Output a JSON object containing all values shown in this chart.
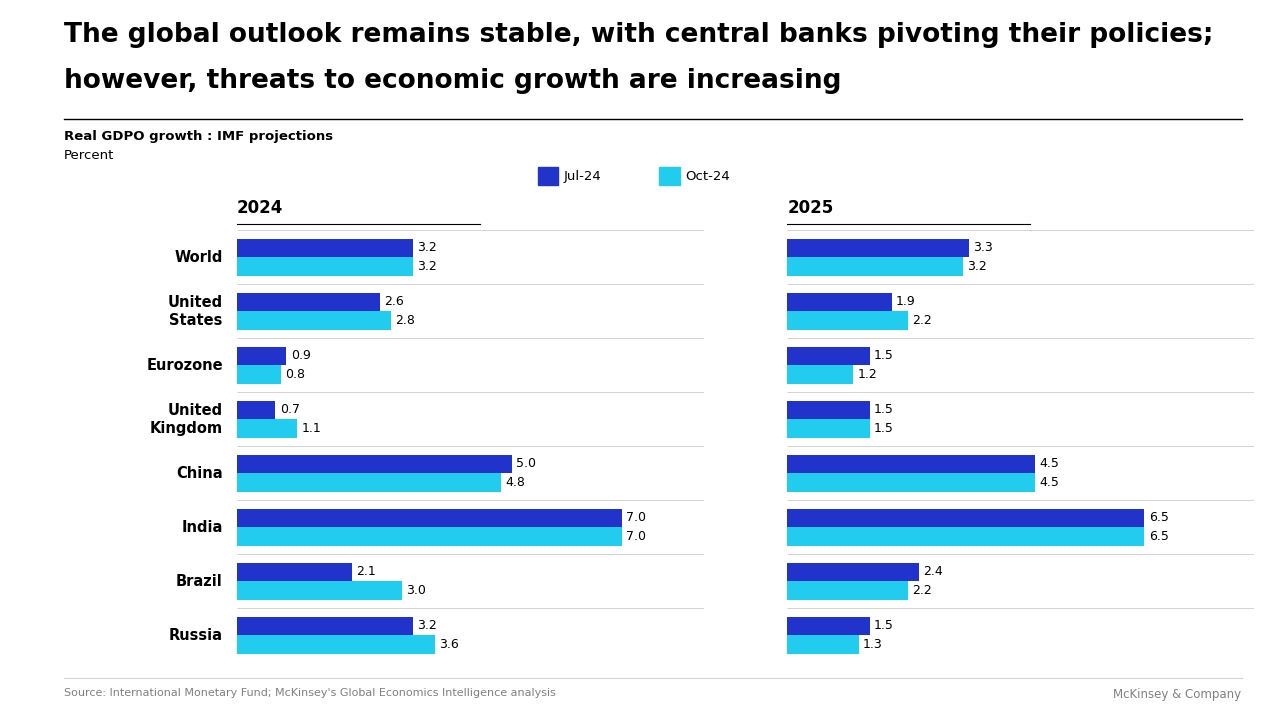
{
  "title_line1": "The global outlook remains stable, with central banks pivoting their policies;",
  "title_line2": "however, threats to economic growth are increasing",
  "subtitle1": "Real GDPO growth : IMF projections",
  "subtitle2": "Percent",
  "source": "Source: International Monetary Fund; McKinsey's Global Economics Intelligence analysis",
  "watermark": "McKinsey & Company",
  "legend": [
    "Jul-24",
    "Oct-24"
  ],
  "color_jul24": "#2233CC",
  "color_oct24": "#22CCEE",
  "categories": [
    "World",
    "United\nStates",
    "Eurozone",
    "United\nKingdom",
    "China",
    "India",
    "Brazil",
    "Russia"
  ],
  "data_2024_jul": [
    3.2,
    2.6,
    0.9,
    0.7,
    5.0,
    7.0,
    2.1,
    3.2
  ],
  "data_2024_oct": [
    3.2,
    2.8,
    0.8,
    1.1,
    4.8,
    7.0,
    3.0,
    3.6
  ],
  "data_2025_jul": [
    3.3,
    1.9,
    1.5,
    1.5,
    4.5,
    6.5,
    2.4,
    1.5
  ],
  "data_2025_oct": [
    3.2,
    2.2,
    1.2,
    1.5,
    4.5,
    6.5,
    2.2,
    1.3
  ],
  "col_2024_label": "2024",
  "col_2025_label": "2025",
  "bar_height": 0.35,
  "background_color": "#FFFFFF",
  "title_fontsize": 19,
  "category_fontsize": 10.5,
  "header_fontsize": 12,
  "value_fontsize": 9
}
